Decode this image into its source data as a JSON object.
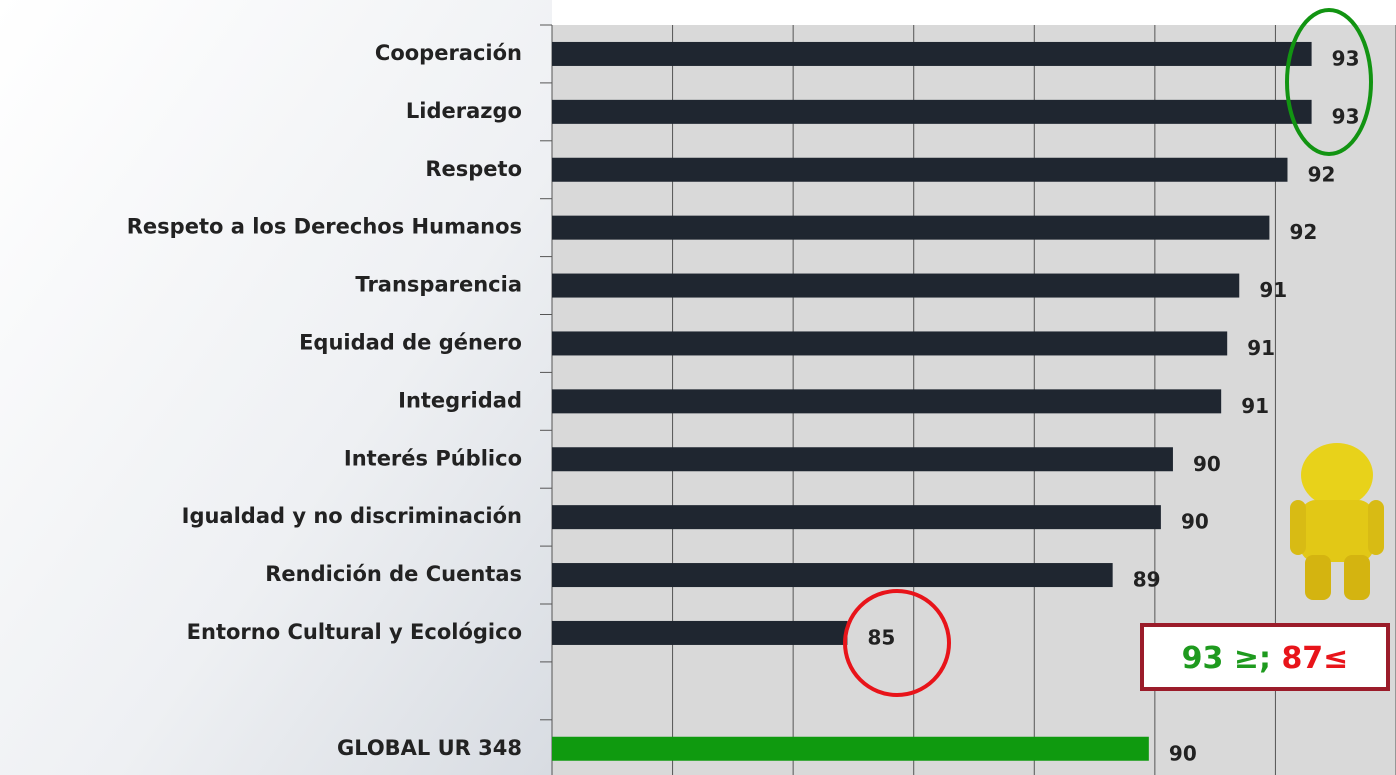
{
  "chart_data": {
    "type": "bar",
    "orientation": "horizontal",
    "categories": [
      "Cooperación",
      "Liderazgo",
      "Respeto",
      "Respeto a los Derechos Humanos",
      "Transparencia",
      "Equidad de género",
      "Integridad",
      "Interés Público",
      "Igualdad y no discriminación",
      "Rendición de Cuentas",
      "Entorno Cultural y Ecológico",
      null,
      "GLOBAL UR 348"
    ],
    "values": [
      92.6,
      92.6,
      92.2,
      91.9,
      91.4,
      91.2,
      91.1,
      90.3,
      90.1,
      89.3,
      84.9,
      null,
      89.9
    ],
    "value_labels": [
      "93",
      "93",
      "92",
      "92",
      "91",
      "91",
      "91",
      "90",
      "90",
      "89",
      "85",
      null,
      "90"
    ],
    "colors": [
      "#1f2630",
      "#1f2630",
      "#1f2630",
      "#1f2630",
      "#1f2630",
      "#1f2630",
      "#1f2630",
      "#1f2630",
      "#1f2630",
      "#1f2630",
      "#1f2630",
      null,
      "#0f9a0f"
    ],
    "xlim": [
      80,
      94
    ],
    "xticks": [
      80,
      82,
      84,
      86,
      88,
      90,
      92,
      94
    ],
    "grid": true,
    "annotations": [
      {
        "text": "93 ≥;",
        "color": "#1e9a1e"
      },
      {
        "text": "87≤",
        "color": "#e8141a"
      }
    ]
  }
}
